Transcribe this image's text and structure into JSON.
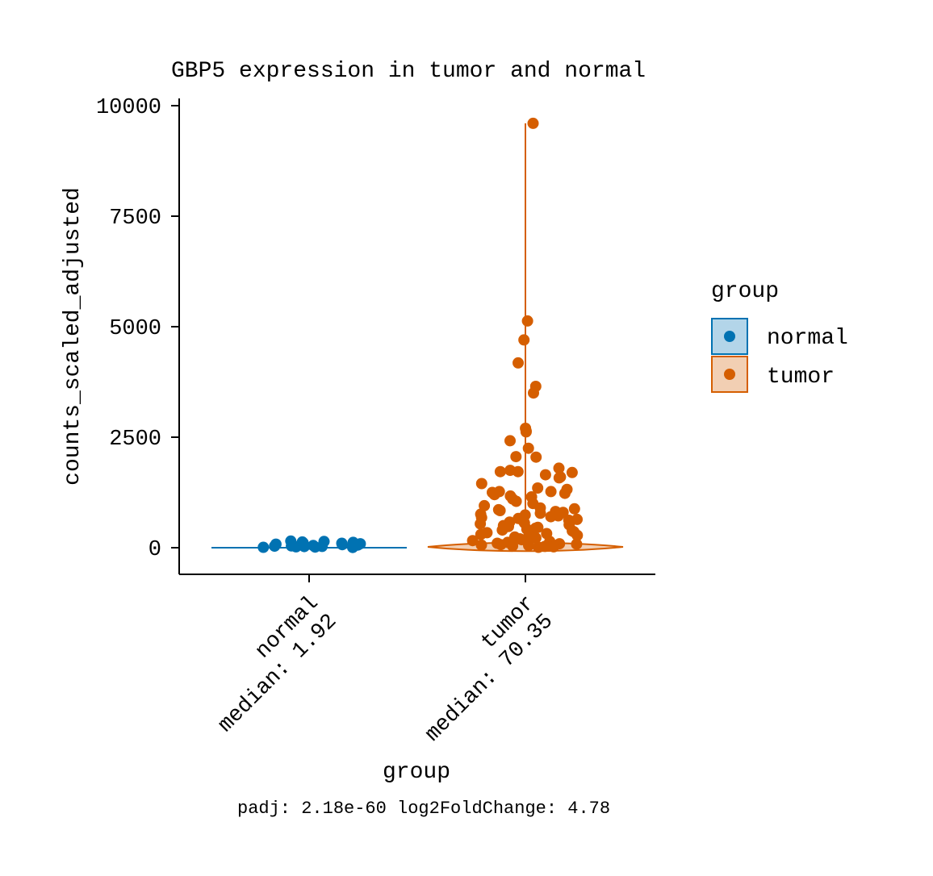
{
  "chart_data": {
    "type": "violin",
    "title": "GBP5 expression in tumor and normal",
    "xlabel": "group",
    "ylabel": "counts_scaled_adjusted",
    "ylim": [
      -500,
      10500
    ],
    "yticks": [
      0,
      2500,
      5000,
      7500,
      10000
    ],
    "grid": false,
    "legend_placement": "right",
    "categories": [
      {
        "name": "normal",
        "median_label": "median: 1.92"
      },
      {
        "name": "tumor",
        "median_label": "median: 70.35"
      }
    ],
    "legend": {
      "title": "group",
      "entries": [
        {
          "label": "normal",
          "color": "#0072B2",
          "fill": "#B3D5E9"
        },
        {
          "label": "tumor",
          "color": "#D55E00",
          "fill": "#F2CFB3"
        }
      ]
    },
    "series": [
      {
        "name": "normal",
        "color": "#0072B2",
        "median": 1.92,
        "values": [
          5,
          10,
          15,
          20,
          25,
          30,
          35,
          40,
          50,
          60,
          70,
          80,
          90,
          100,
          110,
          120,
          130,
          140,
          150
        ]
      },
      {
        "name": "tumor",
        "color": "#D55E00",
        "median": 70.35,
        "values": [
          9600,
          5130,
          4700,
          4180,
          3650,
          3500,
          2700,
          2620,
          2640,
          2420,
          2250,
          2050,
          2060,
          1800,
          1750,
          1720,
          1720,
          1700,
          1650,
          1600,
          1580,
          1450,
          1350,
          1320,
          1270,
          1270,
          1250,
          1230,
          1200,
          1170,
          1150,
          1100,
          1050,
          1000,
          950,
          900,
          880,
          860,
          840,
          820,
          800,
          780,
          760,
          740,
          720,
          700,
          680,
          660,
          640,
          620,
          600,
          580,
          560,
          540,
          520,
          500,
          480,
          460,
          440,
          420,
          400,
          380,
          360,
          340,
          320,
          300,
          280,
          260,
          240,
          220,
          200,
          180,
          160,
          140,
          120,
          100,
          90,
          80,
          70,
          60,
          50,
          40,
          30,
          20,
          10
        ]
      }
    ]
  },
  "footer": {
    "stats": "padj:  2.18e-60 log2FoldChange:  4.78"
  }
}
